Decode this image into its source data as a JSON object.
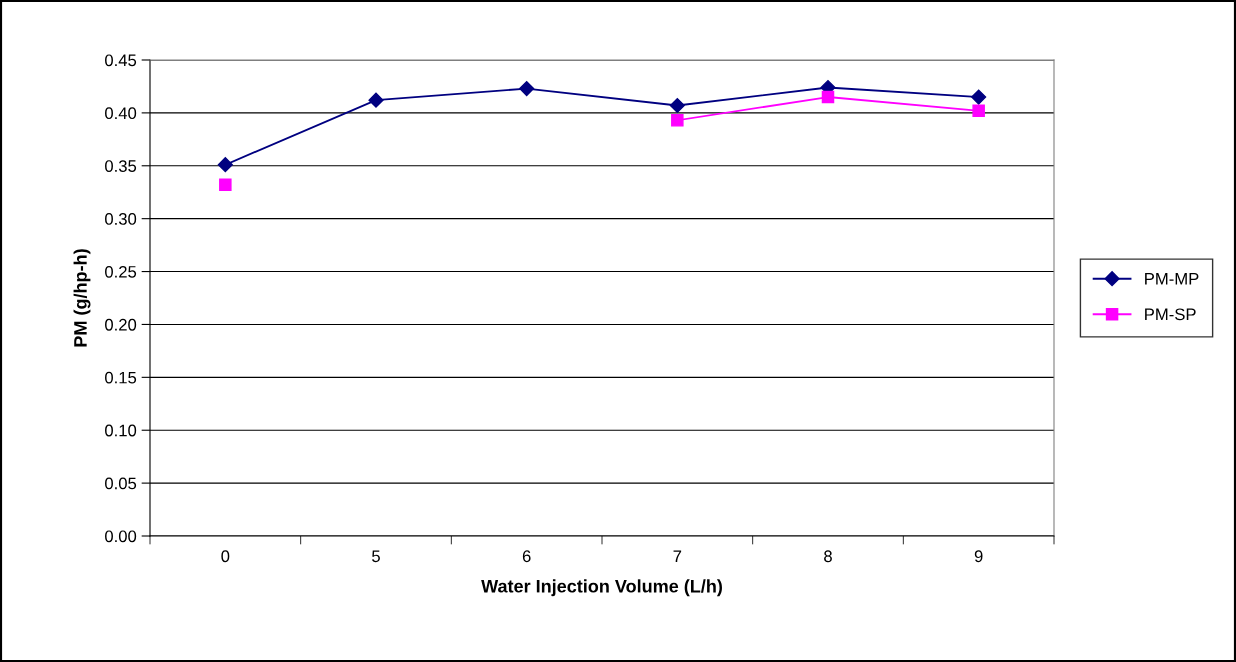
{
  "chart_data": {
    "type": "line",
    "xlabel": "Water Injection Volume (L/h)",
    "ylabel": "PM (g/hp-h)",
    "categories": [
      "0",
      "5",
      "6",
      "7",
      "8",
      "9"
    ],
    "series": [
      {
        "name": "PM-MP",
        "color": "#000080",
        "marker": "diamond",
        "values": [
          0.351,
          0.412,
          0.423,
          0.407,
          0.424,
          0.415
        ]
      },
      {
        "name": "PM-SP",
        "color": "#ff00ff",
        "marker": "square",
        "values": [
          0.332,
          null,
          null,
          0.393,
          0.415,
          0.402
        ]
      }
    ],
    "ylim": [
      0,
      0.45
    ],
    "yticks": [
      {
        "value": 0,
        "label": "0.00"
      },
      {
        "value": 0.05,
        "label": "0.05"
      },
      {
        "value": 0.1,
        "label": "0.10"
      },
      {
        "value": 0.15,
        "label": "0.15"
      },
      {
        "value": 0.2,
        "label": "0.20"
      },
      {
        "value": 0.25,
        "label": "0.25"
      },
      {
        "value": 0.3,
        "label": "0.30"
      },
      {
        "value": 0.35,
        "label": "0.35"
      },
      {
        "value": 0.4,
        "label": "0.40"
      },
      {
        "value": 0.45,
        "label": "0.45"
      }
    ],
    "grid": "y",
    "legend": "right",
    "line_style": "solid"
  }
}
